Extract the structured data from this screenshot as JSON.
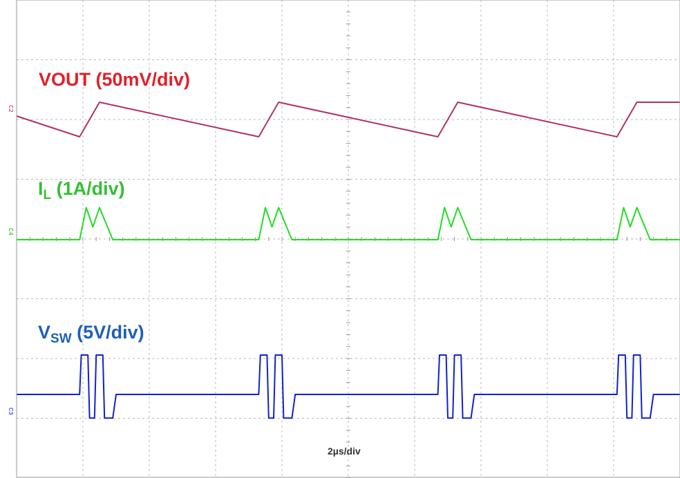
{
  "labels": {
    "vout": "VOUT (50mV/div)",
    "il_main": "I",
    "il_sub": "L",
    "il_scale": " (1A/div)",
    "vsw_main": "V",
    "vsw_sub": "SW",
    "vsw_scale": " (5V/div)",
    "timebase": "2µs/div"
  },
  "markers": {
    "vout": "C2",
    "il": "C4",
    "vsw": "C3"
  },
  "colors": {
    "background": "#ffffff",
    "grid": "#b8b8b8",
    "vout": "#b0306a",
    "vout_label": "#e0202a",
    "il": "#22dd22",
    "il_label": "#33c033",
    "vsw": "#1020d0",
    "vsw_label": "#1f5fb8"
  },
  "chart_data": {
    "type": "line",
    "x_unit": "µs",
    "grid": true,
    "x_range": [
      0,
      20
    ],
    "x_divisions": 10,
    "y_divisions": 8,
    "switching_period_us": 5.4,
    "switching_start_times_us": [
      1.9,
      7.3,
      12.7,
      18.1
    ],
    "series": [
      {
        "name": "VOUT (50mV/div)",
        "description": "Output voltage ripple: ramps up ~2.5 div (~125 mV) during switching burst, decays linearly between bursts",
        "points": [
          [
            0,
            2.6
          ],
          [
            1.9,
            2.0
          ],
          [
            2.5,
            3.0
          ],
          [
            7.3,
            2.0
          ],
          [
            7.9,
            3.0
          ],
          [
            12.7,
            2.0
          ],
          [
            13.3,
            3.0
          ],
          [
            18.1,
            2.0
          ],
          [
            18.7,
            3.0
          ],
          [
            20,
            3.0
          ]
        ]
      },
      {
        "name": "IL (1A/div)",
        "description": "Inductor current: two triangular pulses (~1.5 A peak) per burst, zero between bursts",
        "points": [
          [
            0,
            0
          ],
          [
            1.9,
            0
          ],
          [
            2.1,
            1.5
          ],
          [
            2.3,
            0.6
          ],
          [
            2.5,
            1.5
          ],
          [
            2.9,
            0
          ],
          [
            7.3,
            0
          ],
          [
            7.5,
            1.5
          ],
          [
            7.7,
            0.6
          ],
          [
            7.9,
            1.5
          ],
          [
            8.3,
            0
          ],
          [
            12.7,
            0
          ],
          [
            12.9,
            1.5
          ],
          [
            13.1,
            0.6
          ],
          [
            13.3,
            1.5
          ],
          [
            13.7,
            0
          ],
          [
            18.1,
            0
          ],
          [
            18.3,
            1.5
          ],
          [
            18.5,
            0.6
          ],
          [
            18.7,
            1.5
          ],
          [
            19.1,
            0
          ],
          [
            20,
            0
          ]
        ]
      },
      {
        "name": "VSW (5V/div)",
        "description": "Switch node voltage: two high pulses (~5 V) per burst followed by a low dip and ringing",
        "points": [
          [
            0,
            0
          ],
          [
            1.9,
            0
          ],
          [
            1.95,
            5
          ],
          [
            2.15,
            5
          ],
          [
            2.2,
            -3
          ],
          [
            2.35,
            -3
          ],
          [
            2.4,
            5
          ],
          [
            2.6,
            5
          ],
          [
            2.65,
            -3
          ],
          [
            2.9,
            -3
          ],
          [
            3.0,
            0
          ],
          [
            7.3,
            0
          ],
          [
            7.35,
            5
          ],
          [
            7.55,
            5
          ],
          [
            7.6,
            -3
          ],
          [
            7.75,
            -3
          ],
          [
            7.8,
            5
          ],
          [
            8.0,
            5
          ],
          [
            8.05,
            -3
          ],
          [
            8.3,
            -3
          ],
          [
            8.4,
            0
          ],
          [
            12.7,
            0
          ],
          [
            12.75,
            5
          ],
          [
            12.95,
            5
          ],
          [
            13.0,
            -3
          ],
          [
            13.15,
            -3
          ],
          [
            13.2,
            5
          ],
          [
            13.4,
            5
          ],
          [
            13.45,
            -3
          ],
          [
            13.7,
            -3
          ],
          [
            13.8,
            0
          ],
          [
            18.1,
            0
          ],
          [
            18.15,
            5
          ],
          [
            18.35,
            5
          ],
          [
            18.4,
            -3
          ],
          [
            18.55,
            -3
          ],
          [
            18.6,
            5
          ],
          [
            18.8,
            5
          ],
          [
            18.85,
            -3
          ],
          [
            19.1,
            -3
          ],
          [
            19.2,
            0
          ],
          [
            20,
            0
          ]
        ]
      }
    ]
  }
}
